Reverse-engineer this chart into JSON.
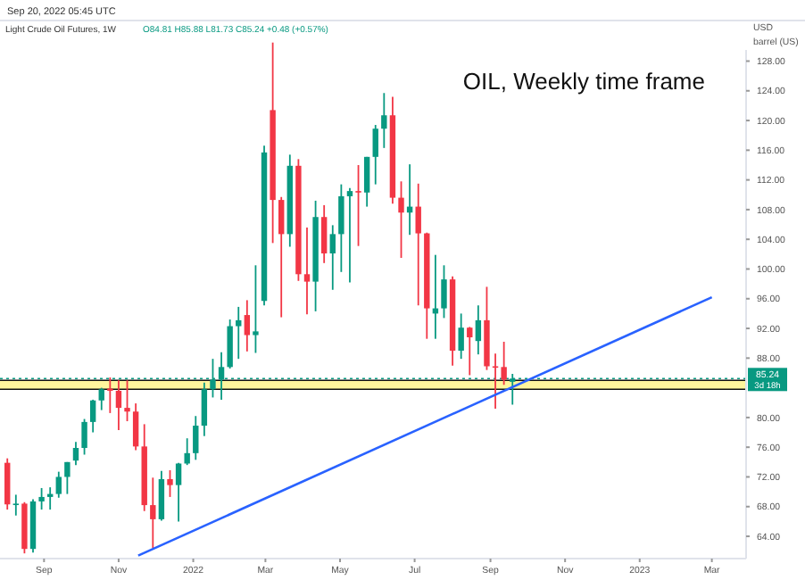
{
  "chart_data": {
    "type": "candlestick",
    "title": "OIL, Weekly time frame",
    "subtitle": "Light Crude Oil Futures, 1W",
    "ylabel": "USD barrel (US)",
    "annotations": [
      "Sep 20, 2022 05:45 UTC",
      "O84.81 H85.88 L81.73 C85.24 +0.48 (+0.57%)",
      "3d 18h"
    ],
    "x": [
      "2021-08-02",
      "2021-08-09",
      "2021-08-16",
      "2021-08-23",
      "2021-08-30",
      "2021-09-06",
      "2021-09-13",
      "2021-09-20",
      "2021-09-27",
      "2021-10-04",
      "2021-10-11",
      "2021-10-18",
      "2021-10-25",
      "2021-11-01",
      "2021-11-08",
      "2021-11-15",
      "2021-11-22",
      "2021-11-29",
      "2021-12-06",
      "2021-12-13",
      "2021-12-20",
      "2021-12-27",
      "2022-01-03",
      "2022-01-10",
      "2022-01-17",
      "2022-01-24",
      "2022-01-31",
      "2022-02-07",
      "2022-02-14",
      "2022-02-21",
      "2022-02-28",
      "2022-03-07",
      "2022-03-14",
      "2022-03-21",
      "2022-03-28",
      "2022-04-04",
      "2022-04-11",
      "2022-04-18",
      "2022-04-25",
      "2022-05-02",
      "2022-05-09",
      "2022-05-16",
      "2022-05-23",
      "2022-05-30",
      "2022-06-06",
      "2022-06-13",
      "2022-06-20",
      "2022-06-27",
      "2022-07-04",
      "2022-07-11",
      "2022-07-18",
      "2022-07-25",
      "2022-08-01",
      "2022-08-08",
      "2022-08-15",
      "2022-08-22",
      "2022-08-29",
      "2022-09-05",
      "2022-09-12",
      "2022-09-19"
    ],
    "ohlc": [
      [
        73.9,
        74.5,
        67.6,
        68.3
      ],
      [
        68.3,
        69.6,
        66.8,
        68.4
      ],
      [
        68.4,
        68.6,
        61.7,
        62.3
      ],
      [
        62.3,
        69.0,
        61.8,
        68.7
      ],
      [
        68.7,
        70.5,
        67.6,
        69.3
      ],
      [
        69.3,
        70.6,
        67.6,
        69.7
      ],
      [
        69.7,
        72.7,
        69.2,
        72.0
      ],
      [
        72.0,
        74.0,
        69.7,
        74.0
      ],
      [
        74.2,
        76.7,
        73.6,
        75.9
      ],
      [
        75.9,
        79.8,
        75.0,
        79.4
      ],
      [
        79.4,
        82.4,
        78.0,
        82.3
      ],
      [
        82.3,
        84.0,
        81.0,
        83.8
      ],
      [
        83.9,
        85.4,
        80.6,
        83.6
      ],
      [
        83.6,
        85.0,
        78.3,
        81.3
      ],
      [
        81.3,
        85.0,
        79.5,
        80.8
      ],
      [
        80.8,
        81.9,
        75.6,
        76.1
      ],
      [
        76.1,
        79.1,
        67.4,
        68.2
      ],
      [
        68.2,
        71.9,
        62.4,
        66.3
      ],
      [
        66.3,
        72.8,
        66.1,
        71.7
      ],
      [
        71.7,
        72.9,
        69.3,
        70.9
      ],
      [
        70.9,
        73.9,
        66.0,
        73.8
      ],
      [
        73.8,
        77.2,
        73.6,
        75.2
      ],
      [
        75.2,
        80.2,
        74.3,
        78.9
      ],
      [
        78.9,
        84.7,
        77.5,
        83.8
      ],
      [
        83.8,
        87.9,
        82.7,
        85.1
      ],
      [
        85.1,
        88.8,
        82.4,
        86.8
      ],
      [
        86.8,
        93.2,
        86.6,
        92.3
      ],
      [
        92.3,
        94.9,
        87.9,
        93.1
      ],
      [
        93.8,
        95.8,
        88.9,
        91.1
      ],
      [
        91.1,
        100.5,
        88.7,
        91.6
      ],
      [
        95.7,
        116.6,
        95.1,
        115.7
      ],
      [
        121.4,
        130.5,
        103.5,
        109.3
      ],
      [
        109.3,
        109.7,
        93.5,
        104.7
      ],
      [
        104.7,
        115.4,
        103.0,
        113.9
      ],
      [
        113.9,
        114.8,
        98.4,
        99.3
      ],
      [
        99.3,
        105.6,
        93.9,
        98.3
      ],
      [
        98.3,
        109.2,
        94.3,
        107.0
      ],
      [
        107.0,
        108.6,
        100.8,
        102.1
      ],
      [
        102.1,
        105.9,
        97.2,
        104.7
      ],
      [
        104.7,
        111.4,
        99.6,
        109.8
      ],
      [
        109.8,
        110.9,
        98.2,
        110.5
      ],
      [
        110.5,
        114.0,
        103.1,
        110.3
      ],
      [
        110.3,
        115.1,
        108.4,
        115.1
      ],
      [
        115.1,
        119.4,
        111.4,
        118.9
      ],
      [
        118.9,
        123.7,
        116.3,
        120.7
      ],
      [
        120.7,
        123.2,
        108.8,
        109.6
      ],
      [
        109.6,
        111.8,
        101.5,
        107.6
      ],
      [
        107.6,
        114.1,
        104.6,
        108.4
      ],
      [
        108.4,
        111.5,
        95.1,
        104.8
      ],
      [
        104.8,
        104.9,
        90.6,
        94.7
      ],
      [
        94.0,
        101.9,
        90.6,
        94.7
      ],
      [
        94.7,
        100.5,
        93.4,
        98.6
      ],
      [
        98.6,
        99.0,
        87.0,
        89.0
      ],
      [
        89.0,
        94.0,
        87.9,
        92.1
      ],
      [
        92.1,
        92.2,
        85.7,
        90.8
      ],
      [
        90.3,
        95.1,
        88.5,
        93.1
      ],
      [
        93.1,
        97.6,
        86.4,
        86.9
      ],
      [
        86.9,
        88.6,
        81.2,
        86.8
      ],
      [
        86.8,
        90.2,
        84.4,
        85.1
      ],
      [
        84.81,
        85.88,
        81.73,
        85.24
      ]
    ],
    "colors": [
      "#f23645",
      "#089981",
      "#f23645",
      "#089981",
      "#089981",
      "#089981",
      "#089981",
      "#089981",
      "#089981",
      "#089981",
      "#089981",
      "#089981",
      "#f23645",
      "#f23645",
      "#f23645",
      "#f23645",
      "#f23645",
      "#f23645",
      "#089981",
      "#f23645",
      "#089981",
      "#089981",
      "#089981",
      "#089981",
      "#089981",
      "#089981",
      "#089981",
      "#089981",
      "#f23645",
      "#089981",
      "#089981",
      "#f23645",
      "#f23645",
      "#089981",
      "#f23645",
      "#f23645",
      "#089981",
      "#f23645",
      "#089981",
      "#089981",
      "#089981",
      "#f23645",
      "#089981",
      "#089981",
      "#089981",
      "#f23645",
      "#f23645",
      "#089981",
      "#f23645",
      "#f23645",
      "#089981",
      "#089981",
      "#f23645",
      "#089981",
      "#f23645",
      "#089981",
      "#f23645",
      "#f23645",
      "#f23645",
      "#089981"
    ],
    "series": [
      {
        "type": "line",
        "x": [
          "2021-11-17",
          "2023-03-01"
        ],
        "values": [
          61.4,
          96.2
        ],
        "color": "#2962ff"
      }
    ],
    "ref_lines": [
      {
        "axis": "y",
        "value": 85.24,
        "label": "85.24",
        "color": "#089981",
        "line_style": "dotted"
      },
      {
        "axis": "y",
        "value": 85.0,
        "color": "#111111",
        "line_style": "solid"
      },
      {
        "axis": "y",
        "value": 83.8,
        "color": "#111111",
        "line_style": "solid"
      }
    ],
    "bands": [
      {
        "axis": "y",
        "from": 83.8,
        "to": 85.0,
        "color": "#fff59d"
      }
    ],
    "xlim": [
      "2021-07-27",
      "2023-03-29"
    ],
    "xticks": [
      {
        "value": "2021-09-01",
        "label": "Sep"
      },
      {
        "value": "2021-11-01",
        "label": "Nov"
      },
      {
        "value": "2022-01-01",
        "label": "2022"
      },
      {
        "value": "2022-03-01",
        "label": "Mar"
      },
      {
        "value": "2022-05-01",
        "label": "May"
      },
      {
        "value": "2022-07-01",
        "label": "Jul"
      },
      {
        "value": "2022-09-01",
        "label": "Sep"
      },
      {
        "value": "2022-11-01",
        "label": "Nov"
      },
      {
        "value": "2023-01-01",
        "label": "2023"
      },
      {
        "value": "2023-03-01",
        "label": "Mar"
      }
    ],
    "ylim": [
      61,
      129.5
    ],
    "yticks": [
      {
        "value": 64,
        "label": "64.00"
      },
      {
        "value": 68,
        "label": "68.00"
      },
      {
        "value": 72,
        "label": "72.00"
      },
      {
        "value": 76,
        "label": "76.00"
      },
      {
        "value": 80,
        "label": "80.00"
      },
      {
        "value": 88,
        "label": "88.00"
      },
      {
        "value": 92,
        "label": "92.00"
      },
      {
        "value": 96,
        "label": "96.00"
      },
      {
        "value": 100,
        "label": "100.00"
      },
      {
        "value": 104,
        "label": "104.00"
      },
      {
        "value": 108,
        "label": "108.00"
      },
      {
        "value": 112,
        "label": "112.00"
      },
      {
        "value": 116,
        "label": "116.00"
      },
      {
        "value": 120,
        "label": "120.00"
      },
      {
        "value": 124,
        "label": "124.00"
      },
      {
        "value": 128,
        "label": "128.00"
      }
    ]
  }
}
